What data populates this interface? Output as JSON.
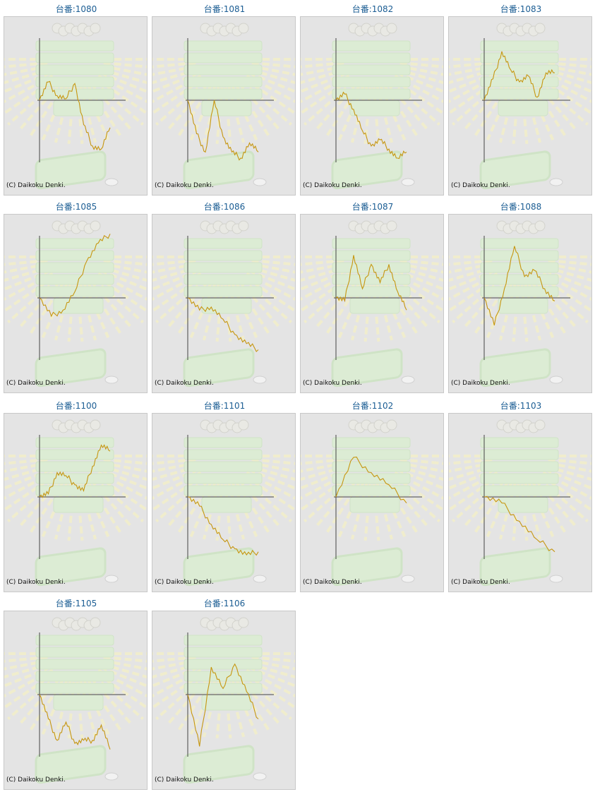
{
  "copyright": "(C) Daikoku Denki.",
  "colors": {
    "line": "#c69610",
    "axis": "#444444",
    "link": "#1b5d93",
    "panel": "#e4e4e4"
  },
  "chart_data": [
    {
      "type": "line",
      "title": "台番:1080",
      "series": [
        {
          "values": [
            0,
            60,
            15,
            5,
            55,
            -80,
            -150,
            -160,
            -90
          ]
        }
      ]
    },
    {
      "type": "line",
      "title": "台番:1081",
      "series": [
        {
          "values": [
            0,
            -110,
            -170,
            0,
            -120,
            -170,
            -190,
            -140,
            -170
          ]
        }
      ]
    },
    {
      "type": "line",
      "title": "台番:1082",
      "series": [
        {
          "values": [
            0,
            20,
            -30,
            -100,
            -150,
            -130,
            -160,
            -190,
            -170
          ]
        }
      ]
    },
    {
      "type": "line",
      "title": "台番:1083",
      "series": [
        {
          "values": [
            0,
            70,
            160,
            100,
            60,
            80,
            10,
            90,
            90
          ]
        }
      ]
    },
    {
      "type": "line",
      "title": "台番:1085",
      "series": [
        {
          "values": [
            0,
            -60,
            -40,
            20,
            120,
            180,
            210
          ]
        }
      ]
    },
    {
      "type": "line",
      "title": "台番:1086",
      "series": [
        {
          "values": [
            0,
            -40,
            -30,
            -70,
            -120,
            -150,
            -170
          ]
        }
      ]
    },
    {
      "type": "line",
      "title": "台番:1087",
      "series": [
        {
          "values": [
            0,
            -10,
            140,
            30,
            110,
            50,
            110,
            20,
            -40
          ]
        }
      ]
    },
    {
      "type": "line",
      "title": "台番:1088",
      "series": [
        {
          "values": [
            0,
            -90,
            30,
            170,
            70,
            90,
            30,
            -10
          ]
        }
      ]
    },
    {
      "type": "line",
      "title": "台番:1100",
      "series": [
        {
          "values": [
            0,
            10,
            80,
            70,
            40,
            20,
            100,
            170,
            150
          ]
        }
      ]
    },
    {
      "type": "line",
      "title": "台番:1101",
      "series": [
        {
          "values": [
            0,
            -30,
            -90,
            -140,
            -170,
            -190,
            -180
          ]
        }
      ]
    },
    {
      "type": "line",
      "title": "台番:1102",
      "series": [
        {
          "values": [
            0,
            130,
            80,
            40,
            -20
          ]
        }
      ]
    },
    {
      "type": "line",
      "title": "台番:1103",
      "series": [
        {
          "values": [
            0,
            -20,
            -80,
            -140,
            -180
          ]
        }
      ]
    },
    {
      "type": "line",
      "title": "台番:1105",
      "series": [
        {
          "values": [
            0,
            -80,
            -150,
            -90,
            -160,
            -150,
            -150,
            -100,
            -180
          ]
        }
      ]
    },
    {
      "type": "line",
      "title": "台番:1106",
      "series": [
        {
          "values": [
            0,
            -170,
            90,
            20,
            100,
            10,
            -80
          ]
        }
      ]
    }
  ]
}
